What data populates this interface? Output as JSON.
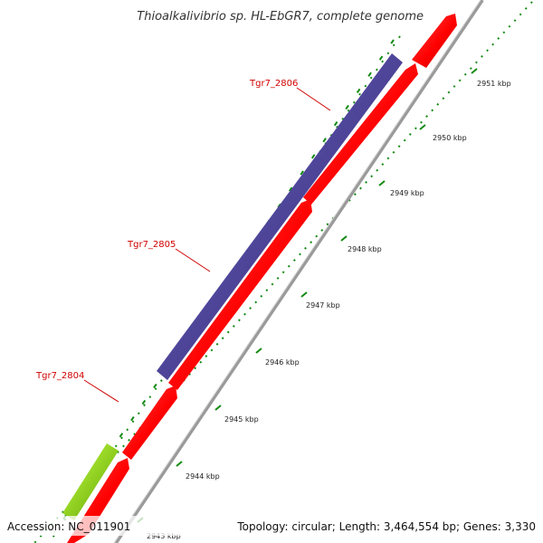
{
  "title": "Thioalkalivibrio sp. HL-EbGR7, complete genome",
  "footer": {
    "accession": "Accession: NC_011901",
    "topology": "Topology: circular; Length: 3,464,554 bp; Genes: 3,330"
  },
  "kbp_labels": [
    "2943 kbp",
    "2944 kbp",
    "2945 kbp",
    "2946 kbp",
    "2947 kbp",
    "2948 kbp",
    "2949 kbp",
    "2950 kbp",
    "2951 kbp"
  ],
  "gene_labels": [
    "Tgr7_2806",
    "Tgr7_2805",
    "Tgr7_2804"
  ],
  "colors": {
    "forward_cds": "#ff0000",
    "reverse_cds": "#4b4296",
    "other_feature": "#8ccc1e",
    "backbone": "#9a9a9a",
    "tick_marks": "#138a13",
    "gene_label": "#d00000"
  }
}
